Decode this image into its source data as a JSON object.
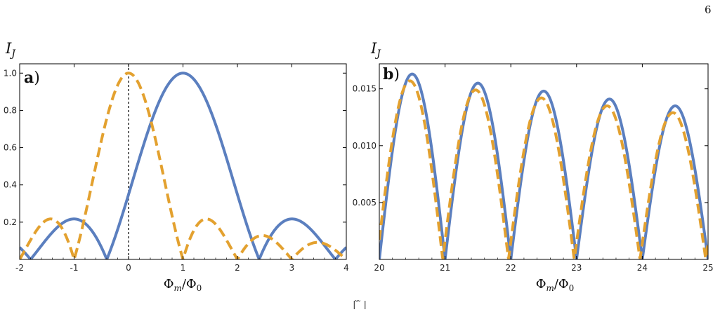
{
  "page_number": "6",
  "footer_fragment": "| ̃  ̃  |",
  "colors": {
    "series_solid": "#5b7fbf",
    "series_dashed": "#e3a12f",
    "axis": "#000000"
  },
  "chart_data": [
    {
      "type": "line",
      "panel_label": "a",
      "panel_label_suffix": ")",
      "ylabel": "I",
      "ylabel_sub": "J",
      "xlabel": "Φ",
      "xlabel_sub1": "m",
      "xlabel_mid": "/Φ",
      "xlabel_sub2": "0",
      "xlim": [
        -2,
        4
      ],
      "ylim": [
        0,
        1.05
      ],
      "xticks": [
        "-2",
        "-1",
        "0",
        "1",
        "2",
        "3",
        "4"
      ],
      "yticks": [
        "0.2",
        "0.4",
        "0.6",
        "0.8",
        "1.0"
      ],
      "vline_x": 0,
      "grid": false,
      "series": [
        {
          "style": "solid",
          "color": "#5b7fbf",
          "formula": "abs(sinc(pi*(x-1)/1.4))",
          "x_shift": 1,
          "zero_spacing": 1.4
        },
        {
          "style": "dashed",
          "color": "#e3a12f",
          "formula": "abs(sinc(pi*x))",
          "x_shift": 0,
          "zero_spacing": 1
        }
      ]
    },
    {
      "type": "line",
      "panel_label": "b",
      "panel_label_suffix": ")",
      "ylabel": "I",
      "ylabel_sub": "J",
      "xlabel": "Φ",
      "xlabel_sub1": "m",
      "xlabel_mid": "/Φ",
      "xlabel_sub2": "0",
      "xlim": [
        20,
        25
      ],
      "ylim": [
        0,
        0.0172
      ],
      "xticks": [
        "20",
        "21",
        "22",
        "23",
        "24",
        "25"
      ],
      "yticks": [
        "0.005",
        "0.010",
        "0.015"
      ],
      "grid": false,
      "series": [
        {
          "style": "solid",
          "color": "#5b7fbf",
          "x_shift": 0,
          "peaks": [
            0.0163,
            0.0155,
            0.0148,
            0.0141,
            0.0135
          ]
        },
        {
          "style": "dashed",
          "color": "#e3a12f",
          "x_shift": -0.035,
          "peaks": [
            0.0157,
            0.0149,
            0.0142,
            0.0135,
            0.0129
          ]
        }
      ]
    }
  ]
}
